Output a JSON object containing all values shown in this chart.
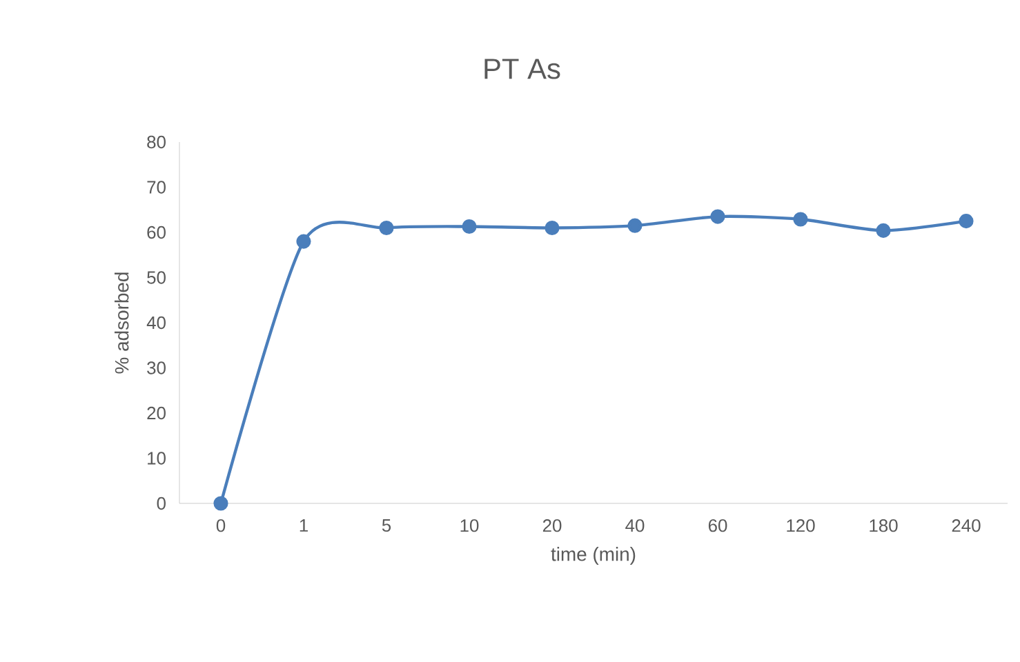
{
  "chart_data": {
    "type": "line",
    "title": "PT As",
    "xlabel": "time (min)",
    "ylabel": "% adsorbed",
    "categories": [
      "0",
      "1",
      "5",
      "10",
      "20",
      "40",
      "60",
      "120",
      "180",
      "240"
    ],
    "series": [
      {
        "color": "#4a7ebb",
        "values": [
          0,
          58,
          61,
          61.3,
          61,
          61.5,
          63.5,
          62.9,
          60.4,
          62.5
        ]
      }
    ],
    "ylim": [
      0,
      80
    ],
    "yticks": [
      0,
      10,
      20,
      30,
      40,
      50,
      60,
      70,
      80
    ],
    "marker": "circle",
    "line_style": "solid"
  }
}
